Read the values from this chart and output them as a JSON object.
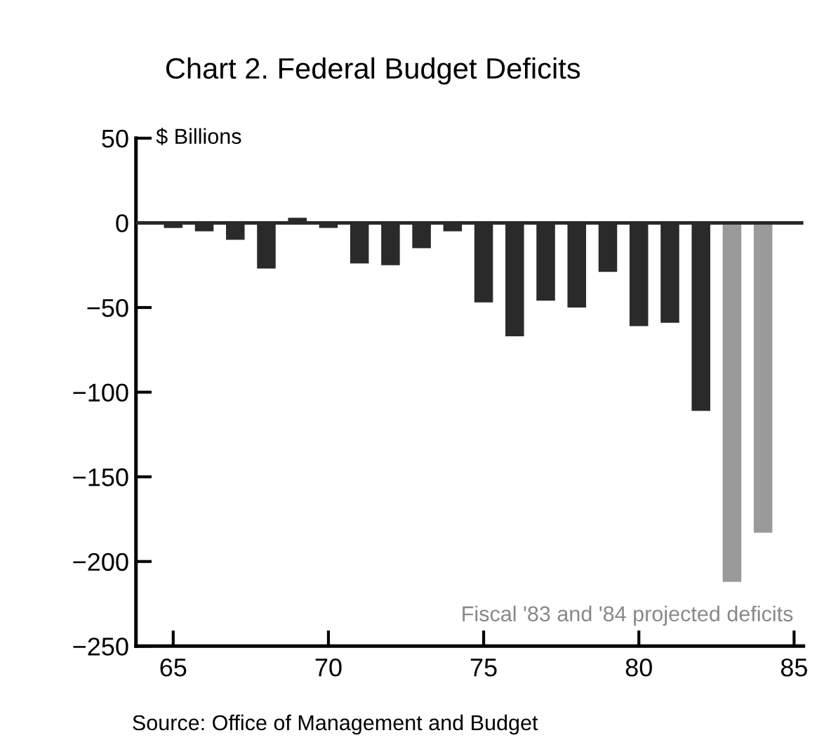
{
  "chart_data": {
    "type": "bar",
    "title": "Chart 2. Federal Budget Deficits",
    "ylabel": "$ Billions",
    "x": [
      65,
      66,
      67,
      68,
      69,
      70,
      71,
      72,
      73,
      74,
      75,
      76,
      77,
      78,
      79,
      80,
      81,
      82,
      83,
      84
    ],
    "values": [
      -3,
      -5,
      -10,
      -27,
      3,
      -3,
      -24,
      -25,
      -15,
      -5,
      -47,
      -67,
      -46,
      -50,
      -29,
      -61,
      -59,
      -111,
      -212,
      -183
    ],
    "colors": [
      "#2a2a2a",
      "#2a2a2a",
      "#2a2a2a",
      "#2a2a2a",
      "#2a2a2a",
      "#2a2a2a",
      "#2a2a2a",
      "#2a2a2a",
      "#2a2a2a",
      "#2a2a2a",
      "#2a2a2a",
      "#2a2a2a",
      "#2a2a2a",
      "#2a2a2a",
      "#2a2a2a",
      "#2a2a2a",
      "#2a2a2a",
      "#2a2a2a",
      "#9a9a9a",
      "#9a9a9a"
    ],
    "xlim": [
      63.8,
      85.3
    ],
    "xticks": [
      65,
      70,
      75,
      80,
      85
    ],
    "ylim": [
      -250,
      50
    ],
    "yticks": [
      50,
      0,
      -50,
      -100,
      -150,
      -200,
      -250
    ],
    "ref_lines": [
      {
        "axis": "y",
        "value": 0,
        "color": "#2a2a2a"
      }
    ],
    "grid": false,
    "annotations": [
      "Fiscal '83 and '84 projected deficits",
      "Source: Office of Management and Budget"
    ]
  }
}
